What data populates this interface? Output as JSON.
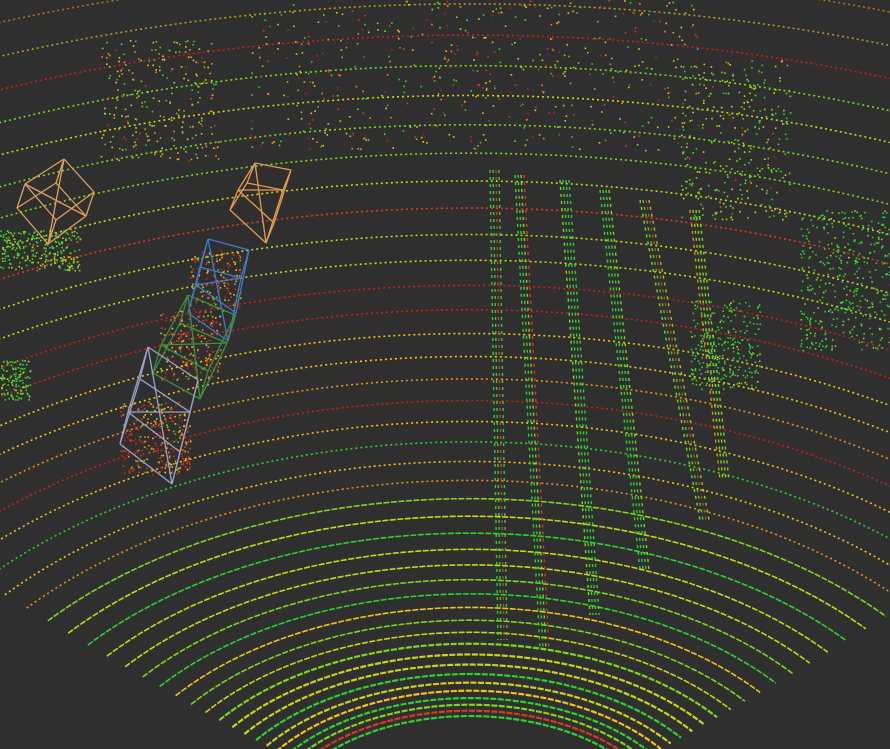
{
  "scene": {
    "type": "lidar-point-cloud-3d-detections",
    "background": "#2f2f2f",
    "point_colors": [
      "#2ed12e",
      "#7fd51f",
      "#c8d61a",
      "#f0c419",
      "#e8901a",
      "#d93a1f",
      "#c81e1e"
    ],
    "objects": [
      {
        "name": "box-far-left-orange",
        "color": "#e0a060"
      },
      {
        "name": "box-mid-orange",
        "color": "#e49a4e"
      },
      {
        "name": "box-blue",
        "color": "#3f79c9"
      },
      {
        "name": "box-green",
        "color": "#3e8f3e"
      },
      {
        "name": "box-gray-front",
        "color": "#9aa3c4"
      }
    ]
  }
}
